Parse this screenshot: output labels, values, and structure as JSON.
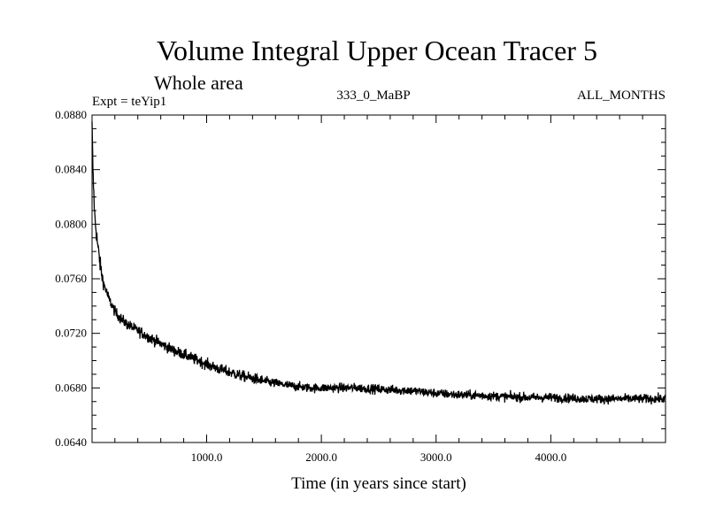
{
  "chart_data": {
    "type": "line",
    "title": "Volume Integral Upper Ocean Tracer 5",
    "subtitle": "Whole area",
    "experiment": "Expt = teYip1",
    "period": "333_0_MaBP",
    "months": "ALL_MONTHS",
    "xlabel": "Time (in years since start)",
    "ylabel": "",
    "xlim": [
      1,
      5000
    ],
    "ylim": [
      0.064,
      0.088
    ],
    "xticks": [
      1000,
      2000,
      3000,
      4000
    ],
    "xtick_labels": [
      "1000.0",
      "2000.0",
      "3000.0",
      "4000.0"
    ],
    "yticks": [
      0.064,
      0.068,
      0.072,
      0.076,
      0.08,
      0.084,
      0.088
    ],
    "ytick_labels": [
      "0.0640",
      "0.0680",
      "0.0720",
      "0.0760",
      "0.0800",
      "0.0840",
      "0.0880"
    ],
    "grid": false,
    "series": [
      {
        "name": "teYip1",
        "color": "#000000",
        "x": [
          1,
          10,
          25,
          50,
          75,
          100,
          150,
          200,
          250,
          300,
          400,
          500,
          700,
          900,
          1100,
          1300,
          1500,
          1700,
          1900,
          2100,
          2300,
          2500,
          2800,
          3000,
          3200,
          3500,
          3800,
          4000,
          4300,
          4600,
          4800,
          5000
        ],
        "y": [
          0.0872,
          0.0835,
          0.0805,
          0.0785,
          0.0768,
          0.0757,
          0.0745,
          0.0736,
          0.0731,
          0.0727,
          0.0722,
          0.0717,
          0.0708,
          0.0701,
          0.0694,
          0.0689,
          0.0685,
          0.0682,
          0.068,
          0.068,
          0.068,
          0.0679,
          0.0678,
          0.0676,
          0.0675,
          0.0674,
          0.0673,
          0.0673,
          0.0672,
          0.0672,
          0.0672,
          0.0672
        ]
      }
    ]
  }
}
